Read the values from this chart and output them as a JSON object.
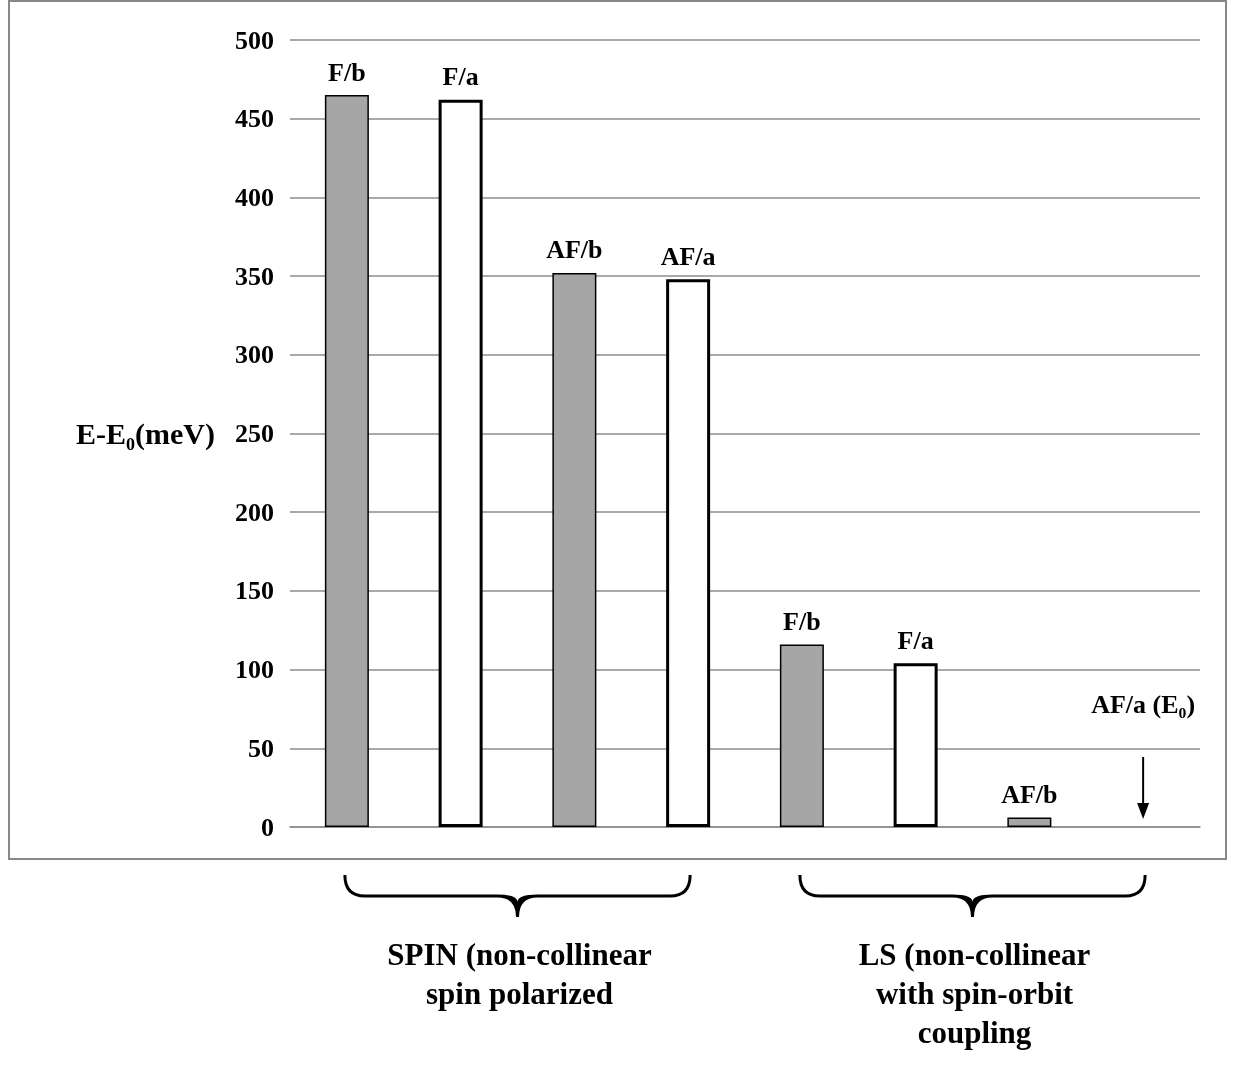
{
  "chart_data": {
    "type": "bar",
    "ylabel": "E-E₀(meV)",
    "categories": [
      "F/b",
      "F/a",
      "AF/b",
      "AF/a",
      "F/b",
      "F/a",
      "AF/b",
      "AF/a (E₀)"
    ],
    "values": [
      465,
      462,
      352,
      348,
      116,
      104,
      6,
      0
    ],
    "colors": [
      "#a6a6a6",
      "#ffffff",
      "#a6a6a6",
      "#ffffff",
      "#a6a6a6",
      "#ffffff",
      "#a6a6a6",
      "#ffffff"
    ],
    "ylim": [
      0,
      500
    ],
    "yticks": [
      0,
      50,
      100,
      150,
      200,
      250,
      300,
      350,
      400,
      450,
      500
    ],
    "grid": "y",
    "tick_labels": "y",
    "annotations": [
      "SPIN (non-collinear\nspin polarized",
      "LS (non-collinear\nwith spin-orbit\ncoupling"
    ]
  }
}
